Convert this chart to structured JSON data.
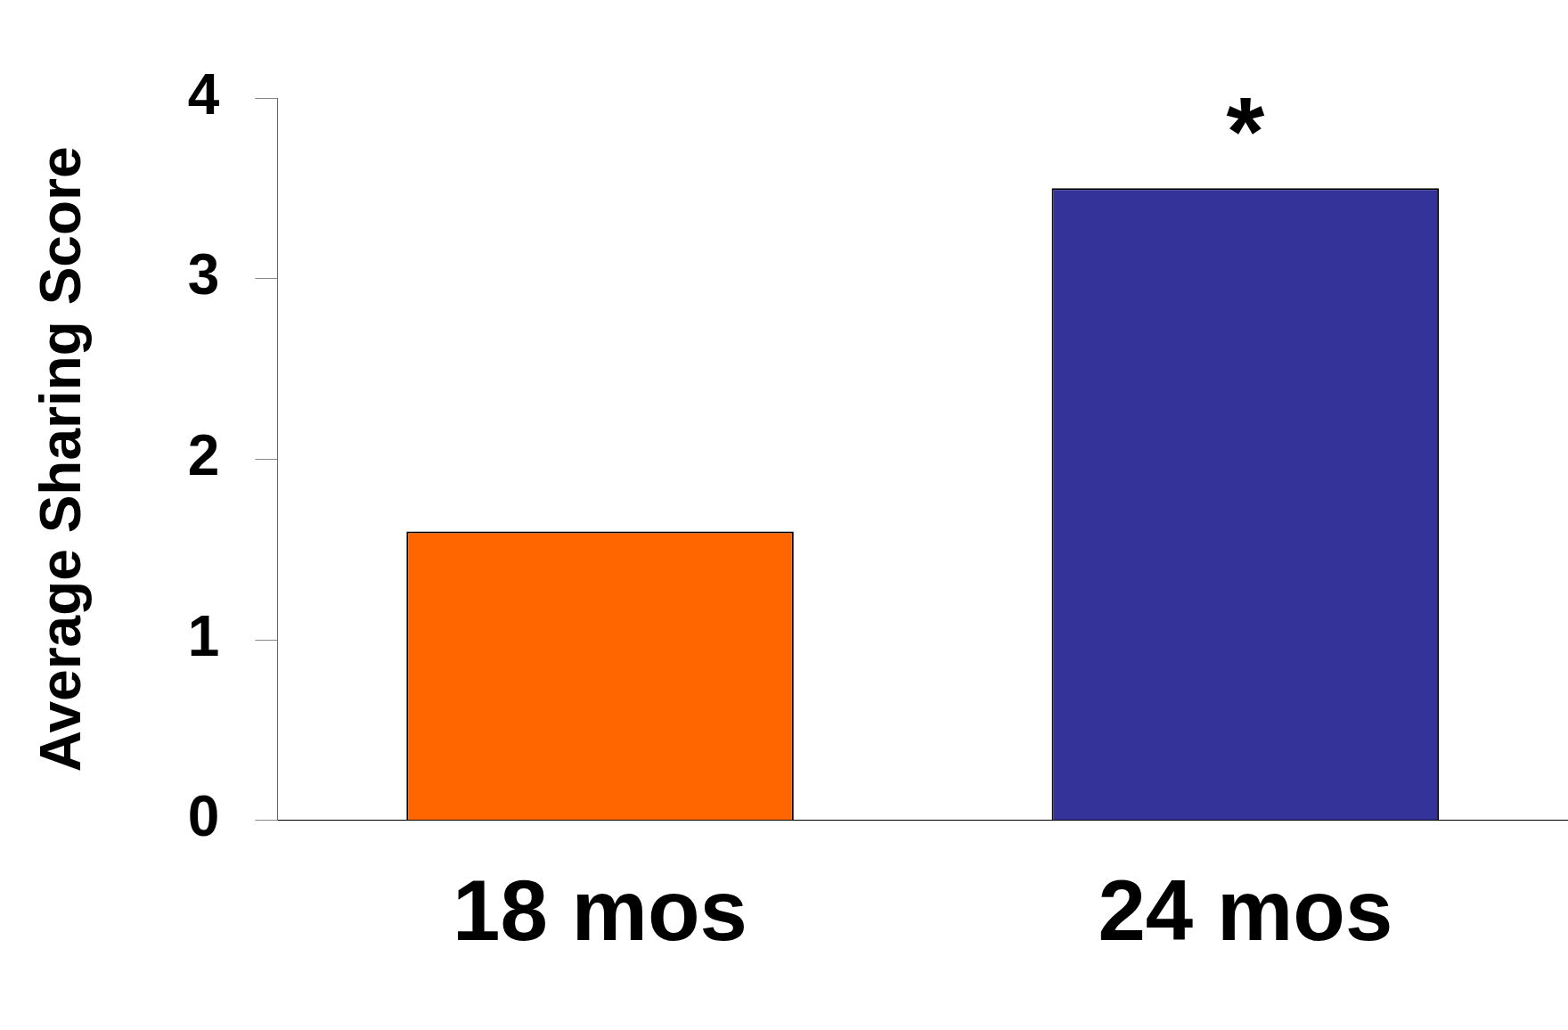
{
  "chart_data": {
    "type": "bar",
    "ylabel": "Average Sharing Score",
    "categories": [
      "18 mos",
      "24 mos"
    ],
    "values": [
      1.6,
      3.5
    ],
    "colors": [
      "#ff6600",
      "#333399"
    ],
    "ylim": [
      0,
      4
    ],
    "yticks": [
      0,
      1,
      2,
      3,
      4
    ],
    "grid": false,
    "legend": false,
    "annotations": [
      "*"
    ]
  }
}
